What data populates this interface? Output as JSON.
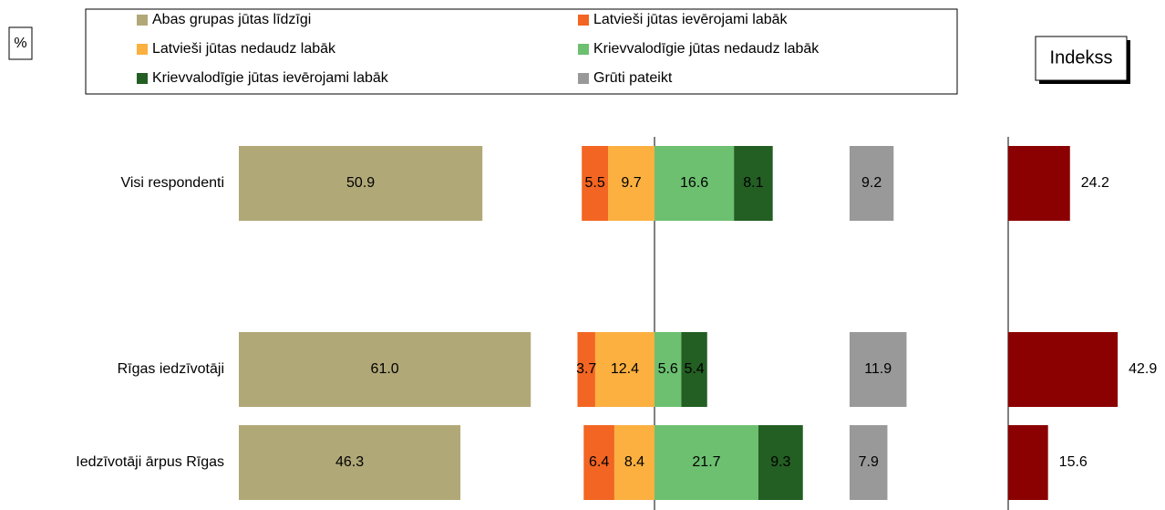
{
  "chart_data": {
    "type": "bar",
    "y_label": "%",
    "categories": [
      "Visi respondenti",
      null,
      "Rīgas iedzīvotāji",
      "Iedzīvotāji ārpus Rīgas"
    ],
    "series": [
      {
        "name": "Abas grupas jūtas līdzīgi",
        "color": "#b1a878",
        "values": [
          50.9,
          null,
          61,
          46.3
        ],
        "value_labels": [
          "50.9",
          null,
          "61.0",
          "46.3"
        ]
      },
      {
        "name": "Latvieši jūtas ievērojami labāk",
        "color": "#f26522",
        "values": [
          5.5,
          null,
          3.7,
          6.4
        ]
      },
      {
        "name": "Latvieši jūtas nedaudz labāk",
        "color": "#fbb040",
        "values": [
          9.7,
          null,
          12.4,
          8.4
        ]
      },
      {
        "name": "Krievvalodīgie jūtas nedaudz labāk",
        "color": "#6cc070",
        "values": [
          16.6,
          null,
          5.6,
          21.7
        ]
      },
      {
        "name": "Krievvalodīgie jūtas ievērojami labāk",
        "color": "#235e23",
        "values": [
          8.1,
          null,
          5.4,
          9.3
        ]
      },
      {
        "name": "Grūti pateikt",
        "color": "#999999",
        "values": [
          9.2,
          null,
          11.9,
          7.9
        ]
      }
    ],
    "index": {
      "title": "Indekss",
      "color": "#8b0000",
      "values": [
        24.2,
        null,
        42.9,
        15.6
      ]
    }
  }
}
